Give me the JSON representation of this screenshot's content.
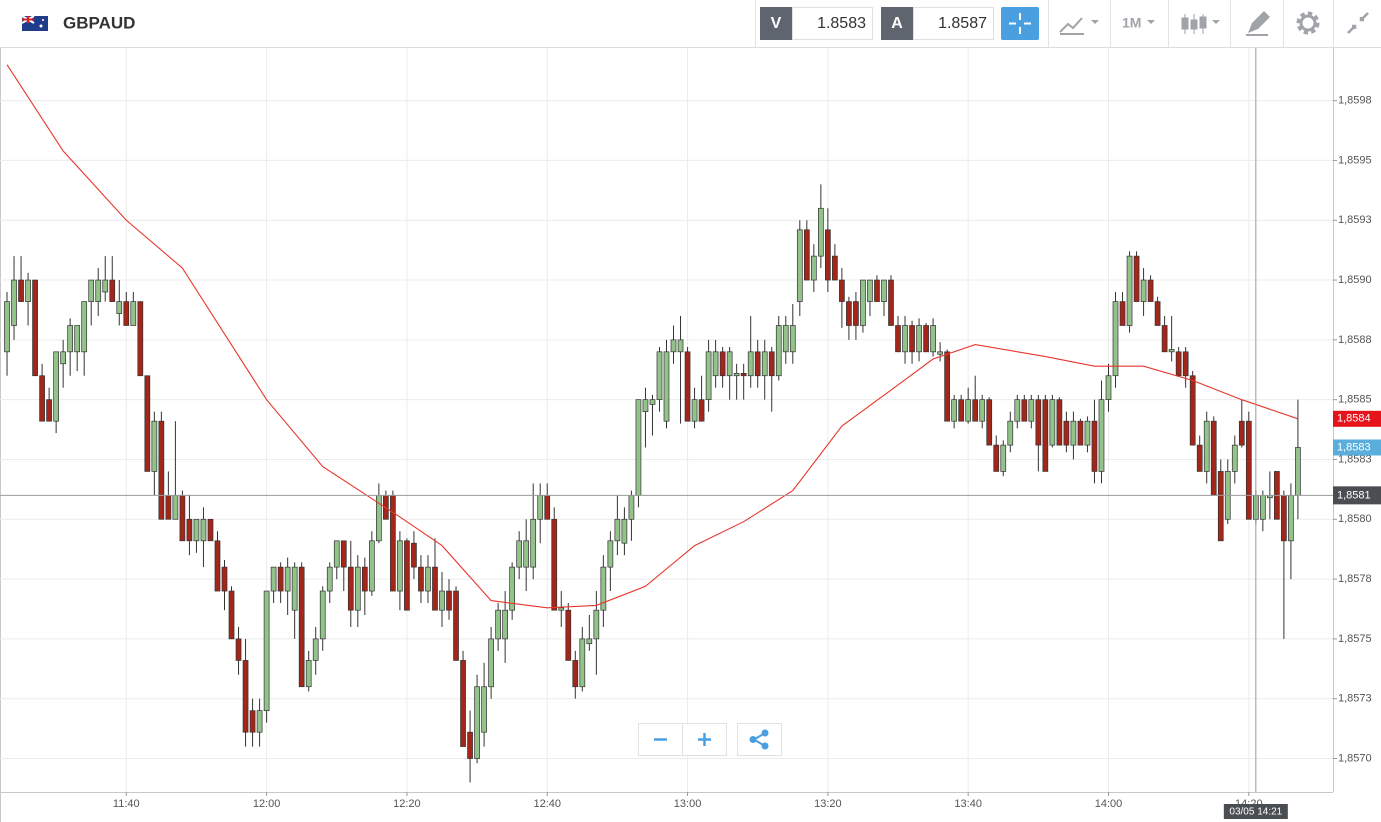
{
  "toolbar": {
    "symbol": "GBPAUD",
    "bid_label": "V",
    "bid": 1.8583,
    "ask_label": "A",
    "ask": 1.8587,
    "timeframe": "1M"
  },
  "chart_data": {
    "type": "candlestick",
    "up_color": "#93c28a",
    "down_color": "#a3261b",
    "xlim": [
      "11:22",
      "14:32"
    ],
    "xticks": [
      "11:40",
      "12:00",
      "12:20",
      "12:40",
      "13:00",
      "13:20",
      "13:40",
      "14:00",
      "14:20"
    ],
    "ylim": [
      1.85686,
      1.85997
    ],
    "yticks": [
      {
        "value": 1.857,
        "label": "1,8570"
      },
      {
        "value": 1.85725,
        "label": "1,8573"
      },
      {
        "value": 1.8575,
        "label": "1,8575"
      },
      {
        "value": 1.85775,
        "label": "1,8578"
      },
      {
        "value": 1.858,
        "label": "1,8580"
      },
      {
        "value": 1.85825,
        "label": "1,8583"
      },
      {
        "value": 1.8585,
        "label": "1,8585"
      },
      {
        "value": 1.85875,
        "label": "1,8588"
      },
      {
        "value": 1.859,
        "label": "1,8590"
      },
      {
        "value": 1.85925,
        "label": "1,8593"
      },
      {
        "value": 1.8595,
        "label": "1,8595"
      },
      {
        "value": 1.85975,
        "label": "1,8598"
      }
    ],
    "grid": true,
    "x": [
      "11:23",
      "11:24",
      "11:25",
      "11:26",
      "11:27",
      "11:28",
      "11:29",
      "11:30",
      "11:31",
      "11:32",
      "11:33",
      "11:34",
      "11:35",
      "11:36",
      "11:37",
      "11:38",
      "11:39",
      "11:40",
      "11:41",
      "11:42",
      "11:43",
      "11:44",
      "11:45",
      "11:46",
      "11:47",
      "11:48",
      "11:49",
      "11:50",
      "11:51",
      "11:52",
      "11:53",
      "11:54",
      "11:55",
      "11:56",
      "11:57",
      "11:58",
      "11:59",
      "12:00",
      "12:01",
      "12:02",
      "12:03",
      "12:04",
      "12:05",
      "12:06",
      "12:07",
      "12:08",
      "12:09",
      "12:10",
      "12:11",
      "12:12",
      "12:13",
      "12:14",
      "12:15",
      "12:16",
      "12:17",
      "12:18",
      "12:19",
      "12:20",
      "12:21",
      "12:22",
      "12:23",
      "12:24",
      "12:25",
      "12:26",
      "12:27",
      "12:28",
      "12:29",
      "12:30",
      "12:31",
      "12:32",
      "12:33",
      "12:34",
      "12:35",
      "12:36",
      "12:37",
      "12:38",
      "12:39",
      "12:40",
      "12:41",
      "12:42",
      "12:43",
      "12:44",
      "12:45",
      "12:46",
      "12:47",
      "12:48",
      "12:49",
      "12:50",
      "12:51",
      "12:52",
      "12:53",
      "12:54",
      "12:55",
      "12:56",
      "12:57",
      "12:58",
      "12:59",
      "13:00",
      "13:01",
      "13:02",
      "13:03",
      "13:04",
      "13:05",
      "13:06",
      "13:07",
      "13:08",
      "13:09",
      "13:10",
      "13:11",
      "13:12",
      "13:13",
      "13:14",
      "13:15",
      "13:16",
      "13:17",
      "13:18",
      "13:19",
      "13:20",
      "13:21",
      "13:22",
      "13:23",
      "13:24",
      "13:25",
      "13:26",
      "13:27",
      "13:28",
      "13:29",
      "13:30",
      "13:31",
      "13:32",
      "13:33",
      "13:34",
      "13:35",
      "13:36",
      "13:37",
      "13:38",
      "13:39",
      "13:40",
      "13:41",
      "13:42",
      "13:43",
      "13:44",
      "13:45",
      "13:46",
      "13:47",
      "13:48",
      "13:49",
      "13:50",
      "13:51",
      "13:52",
      "13:53",
      "13:54",
      "13:55",
      "13:56",
      "13:57",
      "13:58",
      "13:59",
      "14:00",
      "14:01",
      "14:02",
      "14:03",
      "14:04",
      "14:05",
      "14:06",
      "14:07",
      "14:08",
      "14:09",
      "14:10",
      "14:11",
      "14:12",
      "14:13",
      "14:14",
      "14:15",
      "14:16",
      "14:17",
      "14:18",
      "14:19",
      "14:20",
      "14:21",
      "14:22",
      "14:23",
      "14:24",
      "14:25",
      "14:26",
      "14:27"
    ],
    "open": [
      1.8587,
      1.85881,
      1.859,
      1.85891,
      1.859,
      1.8586,
      1.8585,
      1.85841,
      1.85865,
      1.8587,
      1.8587,
      1.8587,
      1.85891,
      1.85891,
      1.85895,
      1.859,
      1.85886,
      1.85891,
      1.85881,
      1.85891,
      1.8586,
      1.8582,
      1.85841,
      1.8581,
      1.858,
      1.8581,
      1.858,
      1.85791,
      1.85791,
      1.858,
      1.85791,
      1.8578,
      1.8577,
      1.8575,
      1.85741,
      1.8572,
      1.85711,
      1.8572,
      1.8577,
      1.8578,
      1.8577,
      1.85762,
      1.8578,
      1.8573,
      1.85741,
      1.8575,
      1.8577,
      1.8578,
      1.85791,
      1.8578,
      1.85762,
      1.8578,
      1.8577,
      1.85791,
      1.8581,
      1.8581,
      1.8577,
      1.85791,
      1.8579,
      1.8578,
      1.8577,
      1.8578,
      1.85762,
      1.8577,
      1.8577,
      1.85741,
      1.85711,
      1.857,
      1.85711,
      1.8573,
      1.8575,
      1.8575,
      1.85762,
      1.8578,
      1.8578,
      1.8578,
      1.858,
      1.8581,
      1.858,
      1.85762,
      1.85762,
      1.85741,
      1.8573,
      1.85748,
      1.8575,
      1.85762,
      1.8578,
      1.85791,
      1.8579,
      1.858,
      1.8581,
      1.85845,
      1.85848,
      1.8585,
      1.85841,
      1.8587,
      1.8587,
      1.8587,
      1.85841,
      1.8585,
      1.8585,
      1.8586,
      1.8587,
      1.8586,
      1.8586,
      1.85861,
      1.8586,
      1.8587,
      1.8586,
      1.8587,
      1.8586,
      1.8587,
      1.8587,
      1.85891,
      1.85921,
      1.859,
      1.8591,
      1.85921,
      1.8591,
      1.859,
      1.85891,
      1.85891,
      1.85881,
      1.85891,
      1.859,
      1.85891,
      1.859,
      1.85881,
      1.8587,
      1.85881,
      1.8587,
      1.85881,
      1.8587,
      1.85869,
      1.8587,
      1.85841,
      1.8585,
      1.85841,
      1.8585,
      1.85841,
      1.8585,
      1.85831,
      1.8582,
      1.85831,
      1.85841,
      1.8585,
      1.85841,
      1.8585,
      1.8585,
      1.85831,
      1.8585,
      1.85841,
      1.85831,
      1.85841,
      1.85831,
      1.85841,
      1.8582,
      1.8585,
      1.8586,
      1.85891,
      1.85881,
      1.8591,
      1.85891,
      1.859,
      1.85891,
      1.85881,
      1.8587,
      1.8587,
      1.8587,
      1.8586,
      1.85831,
      1.8582,
      1.85841,
      1.8582,
      1.858,
      1.8582,
      1.85841,
      1.85841,
      1.858,
      1.858,
      1.85809,
      1.8582,
      1.8581,
      1.85791,
      1.8581
    ],
    "high": [
      1.85895,
      1.8591,
      1.8591,
      1.85903,
      1.859,
      1.85865,
      1.85855,
      1.8587,
      1.85875,
      1.85884,
      1.85881,
      1.85891,
      1.859,
      1.85905,
      1.8591,
      1.8591,
      1.859,
      1.85895,
      1.85895,
      1.85891,
      1.8586,
      1.85845,
      1.85845,
      1.8582,
      1.85841,
      1.85812,
      1.8581,
      1.858,
      1.85805,
      1.858,
      1.85795,
      1.85783,
      1.85772,
      1.85755,
      1.8575,
      1.85725,
      1.85725,
      1.8577,
      1.8578,
      1.85782,
      1.85784,
      1.85782,
      1.85782,
      1.85745,
      1.85755,
      1.85772,
      1.85782,
      1.85791,
      1.85791,
      1.85791,
      1.85785,
      1.85784,
      1.85795,
      1.85815,
      1.85812,
      1.85812,
      1.85795,
      1.85792,
      1.85795,
      1.85785,
      1.85785,
      1.85792,
      1.85778,
      1.85775,
      1.85772,
      1.85745,
      1.8572,
      1.85735,
      1.8574,
      1.85755,
      1.85765,
      1.8577,
      1.85782,
      1.85795,
      1.858,
      1.85815,
      1.85815,
      1.85815,
      1.85805,
      1.8577,
      1.85765,
      1.85745,
      1.85755,
      1.8576,
      1.8577,
      1.85785,
      1.85795,
      1.8581,
      1.85805,
      1.85812,
      1.8585,
      1.85855,
      1.85852,
      1.85872,
      1.85875,
      1.85881,
      1.85885,
      1.85872,
      1.85855,
      1.8586,
      1.85875,
      1.85875,
      1.85872,
      1.85872,
      1.85865,
      1.85865,
      1.85885,
      1.85875,
      1.85875,
      1.85872,
      1.85885,
      1.85885,
      1.8589,
      1.85925,
      1.85925,
      1.85915,
      1.8594,
      1.8593,
      1.85915,
      1.85905,
      1.85893,
      1.85895,
      1.859,
      1.859,
      1.85902,
      1.859,
      1.85902,
      1.85885,
      1.85885,
      1.85883,
      1.85884,
      1.85882,
      1.85884,
      1.85874,
      1.85871,
      1.85852,
      1.85852,
      1.85855,
      1.8586,
      1.85852,
      1.85851,
      1.85835,
      1.85833,
      1.85845,
      1.85852,
      1.85852,
      1.85852,
      1.85852,
      1.85852,
      1.85852,
      1.85851,
      1.85845,
      1.85845,
      1.85842,
      1.85843,
      1.8585,
      1.85858,
      1.85865,
      1.85895,
      1.85895,
      1.85912,
      1.85912,
      1.85905,
      1.85902,
      1.85893,
      1.85885,
      1.85885,
      1.85872,
      1.85872,
      1.85862,
      1.85835,
      1.85845,
      1.85843,
      1.85825,
      1.85825,
      1.85835,
      1.8585,
      1.85845,
      1.85812,
      1.85812,
      1.8582,
      1.8582,
      1.85812,
      1.85815,
      1.8585
    ],
    "low": [
      1.8586,
      1.85875,
      1.85891,
      1.85881,
      1.8586,
      1.85841,
      1.85841,
      1.85836,
      1.85855,
      1.8586,
      1.85862,
      1.8586,
      1.85881,
      1.85885,
      1.85891,
      1.85891,
      1.85881,
      1.85881,
      1.85881,
      1.8586,
      1.8582,
      1.8581,
      1.858,
      1.858,
      1.858,
      1.85791,
      1.85785,
      1.85786,
      1.8578,
      1.85791,
      1.8577,
      1.85762,
      1.8575,
      1.85735,
      1.85705,
      1.85705,
      1.85705,
      1.85715,
      1.85765,
      1.85765,
      1.8576,
      1.8575,
      1.8573,
      1.85728,
      1.85735,
      1.85745,
      1.85765,
      1.85775,
      1.8577,
      1.85755,
      1.85755,
      1.8576,
      1.85768,
      1.8579,
      1.858,
      1.8577,
      1.85762,
      1.85762,
      1.85775,
      1.85765,
      1.85765,
      1.85762,
      1.85755,
      1.85758,
      1.85741,
      1.85705,
      1.8569,
      1.85698,
      1.85705,
      1.85725,
      1.85745,
      1.8574,
      1.85758,
      1.85775,
      1.8577,
      1.85775,
      1.8579,
      1.858,
      1.85762,
      1.85755,
      1.85741,
      1.85725,
      1.85728,
      1.85745,
      1.85735,
      1.85755,
      1.8577,
      1.85785,
      1.85785,
      1.85791,
      1.85805,
      1.8583,
      1.85835,
      1.85845,
      1.85838,
      1.85865,
      1.8584,
      1.85841,
      1.85838,
      1.85841,
      1.85845,
      1.85855,
      1.85855,
      1.8585,
      1.8585,
      1.8585,
      1.85855,
      1.85855,
      1.8585,
      1.85845,
      1.85858,
      1.85865,
      1.85865,
      1.85885,
      1.859,
      1.85895,
      1.85905,
      1.85895,
      1.859,
      1.8588,
      1.85875,
      1.85875,
      1.85878,
      1.85885,
      1.85891,
      1.85885,
      1.85881,
      1.8587,
      1.85865,
      1.85865,
      1.85866,
      1.8587,
      1.85868,
      1.85866,
      1.85841,
      1.85838,
      1.85841,
      1.8584,
      1.85841,
      1.85838,
      1.85831,
      1.8582,
      1.85818,
      1.85828,
      1.85838,
      1.85841,
      1.85838,
      1.8582,
      1.8582,
      1.8583,
      1.85831,
      1.85828,
      1.85825,
      1.85831,
      1.85828,
      1.85815,
      1.85815,
      1.85845,
      1.85855,
      1.85881,
      1.85878,
      1.85891,
      1.85885,
      1.85891,
      1.85881,
      1.8587,
      1.85866,
      1.8586,
      1.85855,
      1.85831,
      1.8582,
      1.85815,
      1.8581,
      1.85791,
      1.85798,
      1.85815,
      1.8583,
      1.858,
      1.85798,
      1.85795,
      1.858,
      1.858,
      1.8575,
      1.85775,
      1.858
    ],
    "close": [
      1.85891,
      1.859,
      1.85891,
      1.859,
      1.8586,
      1.85841,
      1.85841,
      1.8587,
      1.8587,
      1.85881,
      1.85881,
      1.85891,
      1.859,
      1.859,
      1.859,
      1.85891,
      1.85891,
      1.85881,
      1.85891,
      1.8586,
      1.8582,
      1.85841,
      1.858,
      1.858,
      1.8581,
      1.85791,
      1.85791,
      1.858,
      1.858,
      1.85791,
      1.8577,
      1.8577,
      1.8575,
      1.85741,
      1.85711,
      1.85711,
      1.8572,
      1.8577,
      1.8578,
      1.8577,
      1.8578,
      1.8578,
      1.8573,
      1.85741,
      1.8575,
      1.8577,
      1.8578,
      1.85791,
      1.8578,
      1.85762,
      1.8578,
      1.8577,
      1.85791,
      1.8581,
      1.858,
      1.8577,
      1.85791,
      1.85762,
      1.8578,
      1.8577,
      1.8578,
      1.85762,
      1.8577,
      1.85762,
      1.85741,
      1.85705,
      1.857,
      1.8573,
      1.8573,
      1.8575,
      1.85762,
      1.85762,
      1.8578,
      1.85791,
      1.85791,
      1.858,
      1.8581,
      1.858,
      1.85762,
      1.85763,
      1.85741,
      1.8573,
      1.8575,
      1.8575,
      1.85762,
      1.8578,
      1.85791,
      1.858,
      1.858,
      1.8581,
      1.8585,
      1.8585,
      1.8585,
      1.8587,
      1.8587,
      1.85875,
      1.85875,
      1.85841,
      1.8585,
      1.85841,
      1.8587,
      1.8587,
      1.8586,
      1.8587,
      1.85861,
      1.8586,
      1.8587,
      1.8586,
      1.8587,
      1.8586,
      1.85881,
      1.85881,
      1.85881,
      1.85921,
      1.859,
      1.8591,
      1.8593,
      1.859,
      1.859,
      1.85891,
      1.85881,
      1.85881,
      1.859,
      1.859,
      1.85891,
      1.859,
      1.85881,
      1.8587,
      1.85881,
      1.8587,
      1.85881,
      1.8587,
      1.85881,
      1.8587,
      1.85841,
      1.8585,
      1.85841,
      1.8585,
      1.85841,
      1.8585,
      1.85831,
      1.8582,
      1.85831,
      1.85841,
      1.8585,
      1.85841,
      1.8585,
      1.85831,
      1.8582,
      1.8585,
      1.85831,
      1.85831,
      1.85841,
      1.85831,
      1.85841,
      1.8582,
      1.8585,
      1.8586,
      1.85891,
      1.85881,
      1.8591,
      1.85891,
      1.859,
      1.85891,
      1.85881,
      1.8587,
      1.85871,
      1.8586,
      1.8586,
      1.85831,
      1.8582,
      1.85841,
      1.8581,
      1.85791,
      1.8582,
      1.85831,
      1.85831,
      1.858,
      1.8581,
      1.8581,
      1.8581,
      1.858,
      1.85791,
      1.8581,
      1.8583
    ],
    "overlay": {
      "type": "line",
      "color": "#e8362c",
      "x": [
        "11:23",
        "11:31",
        "11:40",
        "11:48",
        "12:00",
        "12:08",
        "12:19",
        "12:25",
        "12:32",
        "12:40",
        "12:47",
        "12:54",
        "13:01",
        "13:08",
        "13:15",
        "13:22",
        "13:29",
        "13:35",
        "13:41",
        "13:51",
        "13:58",
        "14:05",
        "14:12",
        "14:19",
        "14:27"
      ],
      "values": [
        1.8599,
        1.85954,
        1.85925,
        1.85905,
        1.8585,
        1.85822,
        1.85801,
        1.85789,
        1.85766,
        1.85763,
        1.85764,
        1.85772,
        1.85789,
        1.85799,
        1.85812,
        1.85839,
        1.85854,
        1.85867,
        1.85873,
        1.85868,
        1.85864,
        1.85864,
        1.85858,
        1.8585,
        1.85842
      ]
    },
    "price_tags": [
      {
        "value": 1.85842,
        "label": "1,8584",
        "color": "#e5141b"
      },
      {
        "value": 1.8583,
        "label": "1,8583",
        "color": "#5aaedc"
      }
    ],
    "crosshair": {
      "x": {
        "value": "14:21",
        "label": "03/05 14:21"
      },
      "y": {
        "value": 1.8581,
        "label": "1,8581"
      },
      "color": "#4a4d52"
    }
  }
}
